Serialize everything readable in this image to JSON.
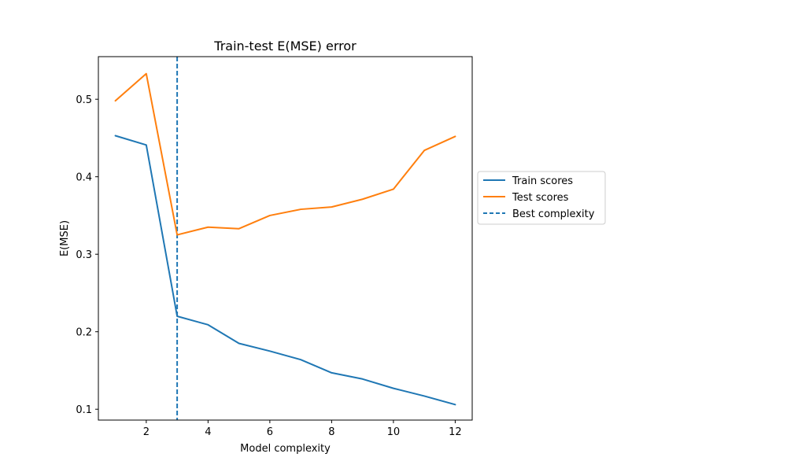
{
  "chart_data": {
    "type": "line",
    "title": "Train-test E(MSE) error",
    "xlabel": "Model complexity",
    "ylabel": "E(MSE)",
    "xlim": [
      0.45,
      12.55
    ],
    "ylim": [
      0.086,
      0.555
    ],
    "xticks": [
      2,
      4,
      6,
      8,
      10,
      12
    ],
    "yticks": [
      0.1,
      0.2,
      0.3,
      0.4,
      0.5
    ],
    "xtick_labels": [
      "2",
      "4",
      "6",
      "8",
      "10",
      "12"
    ],
    "ytick_labels": [
      "0.1",
      "0.2",
      "0.3",
      "0.4",
      "0.5"
    ],
    "x": [
      1,
      2,
      3,
      4,
      5,
      6,
      7,
      8,
      9,
      10,
      11,
      12
    ],
    "series": [
      {
        "name": "Train scores",
        "color": "#1f77b4",
        "values": [
          0.453,
          0.441,
          0.22,
          0.209,
          0.185,
          0.175,
          0.164,
          0.147,
          0.139,
          0.127,
          0.117,
          0.106
        ]
      },
      {
        "name": "Test scores",
        "color": "#ff7f0e",
        "values": [
          0.498,
          0.533,
          0.325,
          0.335,
          0.333,
          0.35,
          0.358,
          0.361,
          0.371,
          0.384,
          0.434,
          0.452
        ]
      }
    ],
    "vline": {
      "name": "Best complexity",
      "x": 3,
      "color": "#1f77b4",
      "style": "dashed"
    },
    "grid": false,
    "legend_position": "outside-right"
  }
}
